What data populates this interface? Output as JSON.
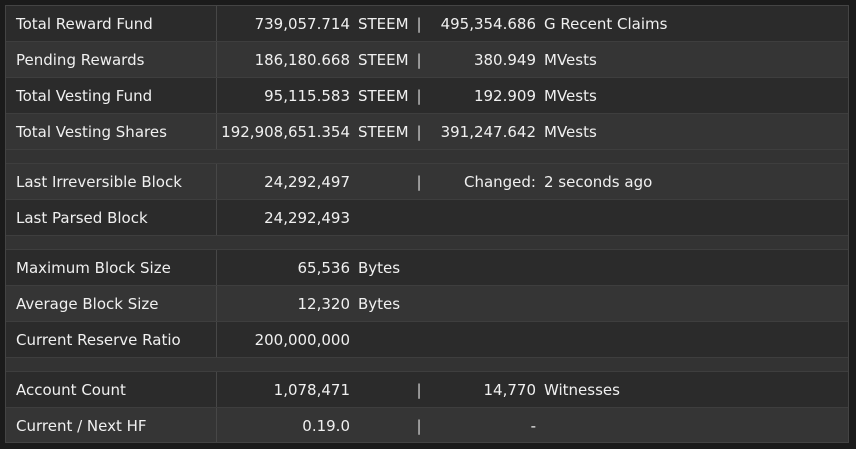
{
  "rows": [
    {
      "label": "Total Reward Fund",
      "val1": "739,057.714",
      "unit1": "STEEM",
      "sep": "|",
      "val2": "495,354.686",
      "unit2": "G  Recent Claims"
    },
    {
      "label": "Pending Rewards",
      "val1": "186,180.668",
      "unit1": "STEEM",
      "sep": "|",
      "val2": "380.949",
      "unit2": "MVests"
    },
    {
      "label": "Total Vesting Fund",
      "val1": "95,115.583",
      "unit1": "STEEM",
      "sep": "|",
      "val2": "192.909",
      "unit2": "MVests"
    },
    {
      "label": "Total Vesting Shares",
      "val1": "192,908,651.354",
      "unit1": "STEEM",
      "sep": "|",
      "val2": "391,247.642",
      "unit2": "MVests"
    },
    {
      "label": "Last Irreversible Block",
      "val1": "24,292,497",
      "unit1": "",
      "sep": "|",
      "val2": "Changed:",
      "unit2": "2 seconds ago"
    },
    {
      "label": "Last Parsed Block",
      "val1": "24,292,493",
      "unit1": "",
      "sep": "",
      "val2": "",
      "unit2": ""
    },
    {
      "label": "Maximum Block Size",
      "val1": "65,536",
      "unit1": "Bytes",
      "sep": "",
      "val2": "",
      "unit2": ""
    },
    {
      "label": "Average Block Size",
      "val1": "12,320",
      "unit1": "Bytes",
      "sep": "",
      "val2": "",
      "unit2": ""
    },
    {
      "label": "Current Reserve Ratio",
      "val1": "200,000,000",
      "unit1": "",
      "sep": "",
      "val2": "",
      "unit2": ""
    },
    {
      "label": "Account Count",
      "val1": "1,078,471",
      "unit1": "",
      "sep": "|",
      "val2": "14,770",
      "unit2": "Witnesses"
    },
    {
      "label": "Current / Next HF",
      "val1": "0.19.0",
      "unit1": "",
      "sep": "|",
      "val2": "-",
      "unit2": ""
    }
  ]
}
